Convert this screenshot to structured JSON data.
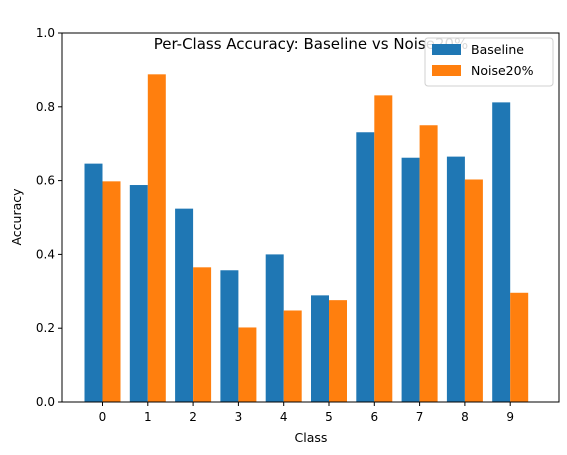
{
  "chart_data": {
    "type": "bar",
    "title": "Per-Class Accuracy: Baseline vs Noise20%",
    "xlabel": "Class",
    "ylabel": "Accuracy",
    "categories": [
      "0",
      "1",
      "2",
      "3",
      "4",
      "5",
      "6",
      "7",
      "8",
      "9"
    ],
    "series": [
      {
        "name": "Baseline",
        "color": "#1f77b4",
        "values": [
          0.646,
          0.588,
          0.524,
          0.357,
          0.4,
          0.289,
          0.731,
          0.662,
          0.665,
          0.812
        ]
      },
      {
        "name": "Noise20%",
        "color": "#ff7f0e",
        "values": [
          0.598,
          0.888,
          0.365,
          0.202,
          0.248,
          0.276,
          0.831,
          0.75,
          0.603,
          0.296
        ]
      }
    ],
    "ylim": [
      0,
      1.0
    ],
    "yticks": [
      0.0,
      0.2,
      0.4,
      0.6,
      0.8,
      1.0
    ],
    "ytick_labels": [
      "0.0",
      "0.2",
      "0.4",
      "0.6",
      "0.8",
      "1.0"
    ],
    "legend_position": "top-right",
    "grid": false
  }
}
